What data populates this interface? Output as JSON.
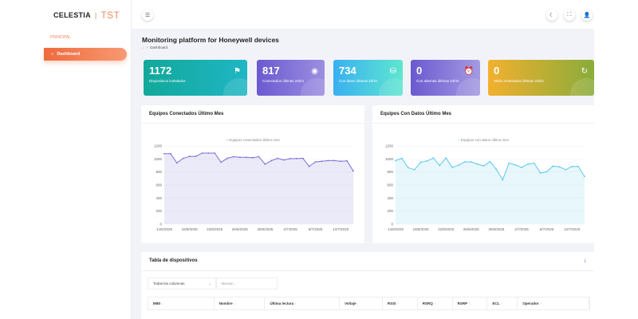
{
  "brand": {
    "name": "CELESTIA",
    "suffix": "TST"
  },
  "sidebar": {
    "section": "PRINCIPAL",
    "items": [
      {
        "label": "Dashboard",
        "icon": "home-icon",
        "active": true
      }
    ]
  },
  "topbar": {
    "menu_icon": "menu-icon",
    "actions": [
      "moon-icon",
      "fullscreen-icon",
      "user-icon"
    ]
  },
  "page": {
    "title": "Monitoring platform for Honeywell devices",
    "breadcrumb": [
      "Dashboard"
    ]
  },
  "cards": [
    {
      "value": "1172",
      "label": "Dispositivos instalados",
      "icon": "flag-icon",
      "colors": [
        "#12a89a",
        "#1fb6c4"
      ]
    },
    {
      "value": "817",
      "label": "Conectados últimas 24hrs",
      "icon": "signal-icon",
      "colors": [
        "#6a5ad0",
        "#9c8ee0"
      ]
    },
    {
      "value": "734",
      "label": "Con datos últimas 24hrs",
      "icon": "database-icon",
      "colors": [
        "#3ab0f0",
        "#5ee6d0"
      ]
    },
    {
      "value": "0",
      "label": "Con alarmas últimas 24hrs",
      "icon": "alarm-icon",
      "colors": [
        "#6a5ad0",
        "#a49ae2"
      ]
    },
    {
      "value": "0",
      "label": "Sitelo reseteados últimas 24hrs",
      "icon": "refresh-icon",
      "colors": [
        "#f2b02e",
        "#8aac3c"
      ]
    }
  ],
  "chart_data": [
    {
      "type": "area",
      "title": "Equipos Conectados Último Mes",
      "series": [
        {
          "name": "Equipos conectados último mes",
          "color": "#7b6fd6",
          "values": [
            1080,
            1080,
            940,
            1010,
            1040,
            1040,
            1090,
            1090,
            1090,
            950,
            1010,
            1035,
            1025,
            1025,
            1020,
            1035,
            920,
            975,
            1010,
            985,
            1005,
            1005,
            1010,
            885,
            955,
            965,
            975,
            975,
            965,
            970,
            815
          ]
        }
      ],
      "x_start": "14/6/2025",
      "x_ticks": [
        "14/6/2025",
        "18/6/2025",
        "22/6/2025",
        "26/6/2025",
        "30/6/2025",
        "4/7/2025",
        "8/7/2025",
        "12/7/2025"
      ],
      "y_ticks": [
        0,
        200,
        400,
        600,
        800,
        1000,
        1200
      ],
      "ylim": [
        0,
        1200
      ],
      "grid": true,
      "legend": "top"
    },
    {
      "type": "area",
      "title": "Equipos Con Datos Último Mes",
      "series": [
        {
          "name": "Equipos con datos último mes",
          "color": "#5cc8ee",
          "values": [
            975,
            1010,
            865,
            835,
            950,
            970,
            1015,
            900,
            1015,
            870,
            905,
            955,
            955,
            920,
            895,
            960,
            840,
            680,
            935,
            910,
            870,
            920,
            935,
            785,
            805,
            890,
            880,
            835,
            885,
            885,
            730
          ]
        }
      ],
      "x_ticks": [
        "14/6/2025",
        "18/6/2025",
        "22/6/2025",
        "26/6/2025",
        "30/6/2025",
        "4/7/2025",
        "8/7/2025",
        "12/7/2025"
      ],
      "y_ticks": [
        0,
        200,
        400,
        600,
        800,
        1000,
        1200
      ],
      "ylim": [
        0,
        1200
      ],
      "grid": true,
      "legend": "top"
    }
  ],
  "table": {
    "title": "Tabla de dispositivos",
    "filter": "Todas las columnas",
    "search_placeholder": "Buscar...",
    "columns": [
      "IMEI",
      "Nombre",
      "Última lectura",
      "Voltaje",
      "RSSI",
      "RSRQ",
      "RSRP",
      "ECL",
      "Operador"
    ]
  }
}
